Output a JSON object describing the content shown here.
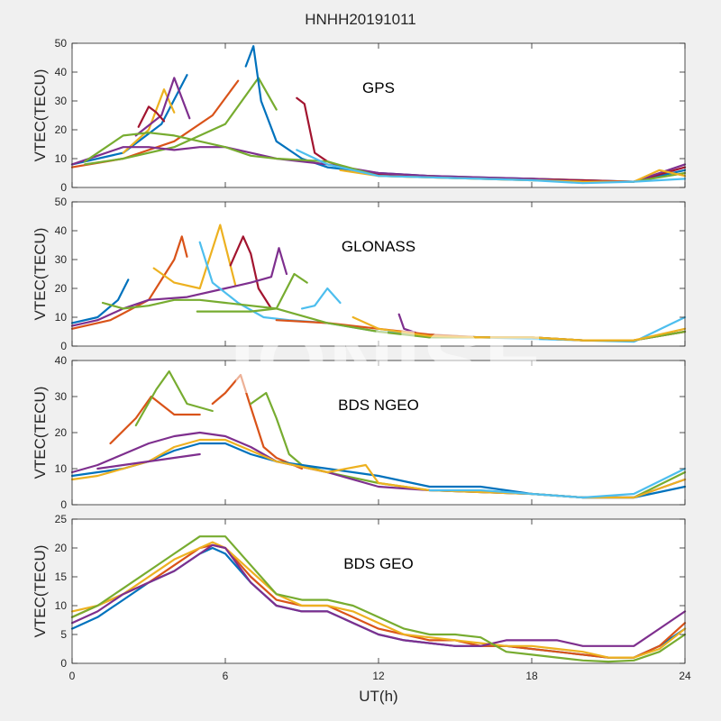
{
  "figure": {
    "title": "HNHH20191011",
    "watermark": "IONISE"
  },
  "colors": [
    "#0072BD",
    "#D95319",
    "#EDB120",
    "#7E2F8E",
    "#77AC30",
    "#4DBEEE",
    "#A2142F"
  ],
  "chart_data": [
    {
      "type": "line",
      "title": "GPS",
      "xlabel": "",
      "ylabel": "VTEC(TECU)",
      "xlim": [
        0,
        24
      ],
      "ylim": [
        0,
        50
      ],
      "xticks": [
        0,
        6,
        12,
        18,
        24
      ],
      "yticks": [
        0,
        10,
        20,
        30,
        40,
        50
      ],
      "show_xtick_labels": false,
      "series": [
        {
          "color": "#0072BD",
          "x": [
            0,
            2,
            3.5,
            4.5
          ],
          "y": [
            8,
            12,
            22,
            39
          ]
        },
        {
          "color": "#D95319",
          "x": [
            0,
            2,
            4,
            5.5,
            6.5
          ],
          "y": [
            7,
            10,
            16,
            25,
            37
          ]
        },
        {
          "color": "#EDB120",
          "x": [
            2,
            3,
            3.6,
            4
          ],
          "y": [
            12,
            20,
            34,
            26
          ]
        },
        {
          "color": "#7E2F8E",
          "x": [
            2.5,
            3.5,
            4,
            4.6
          ],
          "y": [
            18,
            25,
            38,
            24
          ]
        },
        {
          "color": "#77AC30",
          "x": [
            0.5,
            2,
            4,
            6,
            7.3,
            8
          ],
          "y": [
            8,
            10,
            14,
            22,
            38,
            27
          ]
        },
        {
          "color": "#A2142F",
          "x": [
            2.6,
            3,
            3.3,
            3.6
          ],
          "y": [
            21,
            28,
            26,
            23
          ]
        },
        {
          "color": "#0072BD",
          "x": [
            6.8,
            7.1,
            7.4,
            8,
            9,
            10,
            12,
            14,
            16,
            18,
            20,
            22,
            24
          ],
          "y": [
            42,
            49,
            30,
            16,
            10,
            7,
            5,
            4,
            3.5,
            3,
            2.5,
            2,
            6
          ]
        },
        {
          "color": "#A2142F",
          "x": [
            8.8,
            9.1,
            9.5,
            10,
            11,
            12,
            14,
            16,
            18,
            20,
            22,
            24
          ],
          "y": [
            31,
            29,
            12,
            9,
            6,
            4.5,
            4,
            3,
            3,
            2.5,
            2,
            7
          ]
        },
        {
          "color": "#7E2F8E",
          "x": [
            0,
            1,
            2,
            3,
            4,
            5,
            6,
            7,
            8,
            10,
            12,
            14,
            16,
            18,
            20,
            22,
            23,
            24
          ],
          "y": [
            8,
            11,
            14,
            14,
            13,
            14,
            14,
            12,
            10,
            8,
            5,
            4,
            3.5,
            3,
            2,
            2,
            5,
            8
          ]
        },
        {
          "color": "#77AC30",
          "x": [
            0.5,
            2,
            3,
            4,
            5,
            6,
            7,
            8,
            10,
            12,
            14,
            16,
            18,
            20,
            22,
            24
          ],
          "y": [
            9,
            18,
            19,
            18,
            16,
            14,
            11,
            10,
            9,
            4,
            3.5,
            3,
            2.5,
            2,
            2,
            5
          ]
        },
        {
          "color": "#EDB120",
          "x": [
            10.5,
            12,
            14,
            16,
            18,
            20,
            22,
            23,
            24
          ],
          "y": [
            6,
            4,
            3.5,
            3,
            2.5,
            2,
            2,
            6,
            4
          ]
        },
        {
          "color": "#4DBEEE",
          "x": [
            8.8,
            10,
            12,
            14,
            16,
            18,
            20,
            22,
            24
          ],
          "y": [
            13,
            8,
            4,
            3.5,
            3,
            2.5,
            1.5,
            2,
            3
          ]
        }
      ]
    },
    {
      "type": "line",
      "title": "GLONASS",
      "xlabel": "",
      "ylabel": "VTEC(TECU)",
      "xlim": [
        0,
        24
      ],
      "ylim": [
        0,
        50
      ],
      "xticks": [
        0,
        6,
        12,
        18,
        24
      ],
      "yticks": [
        0,
        10,
        20,
        30,
        40,
        50
      ],
      "show_xtick_labels": false,
      "series": [
        {
          "color": "#0072BD",
          "x": [
            0,
            1,
            1.8,
            2.2
          ],
          "y": [
            8,
            10,
            16,
            23
          ]
        },
        {
          "color": "#D95319",
          "x": [
            0,
            1.5,
            3,
            4,
            4.3,
            4.5
          ],
          "y": [
            6,
            9,
            16,
            30,
            38,
            31
          ]
        },
        {
          "color": "#EDB120",
          "x": [
            3.2,
            4,
            5,
            5.8,
            6.4
          ],
          "y": [
            27,
            22,
            20,
            42,
            21
          ]
        },
        {
          "color": "#A2142F",
          "x": [
            6.2,
            6.7,
            7,
            7.3,
            7.8
          ],
          "y": [
            28,
            38,
            32,
            20,
            13
          ]
        },
        {
          "color": "#7E2F8E",
          "x": [
            0,
            1,
            2,
            3,
            4.5,
            6,
            7,
            7.8,
            8.1,
            8.4
          ],
          "y": [
            7,
            9,
            13,
            16,
            17,
            20,
            22,
            24,
            34,
            25
          ]
        },
        {
          "color": "#4DBEEE",
          "x": [
            5,
            5.5,
            6.5,
            7.5,
            8.5,
            10,
            12,
            14,
            16,
            18,
            20,
            22,
            24
          ],
          "y": [
            36,
            22,
            15,
            10,
            9,
            8,
            5,
            4,
            3,
            2.5,
            2,
            1.5,
            10
          ]
        },
        {
          "color": "#77AC30",
          "x": [
            4.9,
            6,
            7,
            8,
            8.7,
            9.2
          ],
          "y": [
            12,
            12,
            12,
            13,
            25,
            22
          ]
        },
        {
          "color": "#4DBEEE",
          "x": [
            9,
            9.5,
            10,
            10.5
          ],
          "y": [
            13,
            14,
            20,
            15
          ]
        },
        {
          "color": "#7E2F8E",
          "x": [
            12.8,
            13,
            14,
            16,
            18,
            20,
            22,
            24
          ],
          "y": [
            11,
            6,
            3,
            3,
            3,
            2,
            2,
            5
          ]
        },
        {
          "color": "#D95319",
          "x": [
            8,
            10,
            12,
            14,
            16,
            18,
            20,
            22,
            24
          ],
          "y": [
            9,
            8,
            6,
            4,
            3,
            3,
            2,
            2,
            5
          ]
        },
        {
          "color": "#77AC30",
          "x": [
            1.2,
            2,
            3,
            4,
            5,
            6,
            8,
            10,
            12,
            14,
            16,
            18,
            20,
            22,
            24
          ],
          "y": [
            15,
            13,
            14,
            16,
            16,
            15,
            13,
            8,
            5,
            3,
            3,
            3,
            2,
            2,
            5
          ]
        },
        {
          "color": "#EDB120",
          "x": [
            11,
            12,
            14,
            16,
            18,
            20,
            22,
            24
          ],
          "y": [
            10,
            6,
            3.5,
            3,
            3,
            2,
            2,
            6
          ]
        }
      ]
    },
    {
      "type": "line",
      "title": "BDS NGEO",
      "xlabel": "",
      "ylabel": "VTEC(TECU)",
      "xlim": [
        0,
        24
      ],
      "ylim": [
        0,
        40
      ],
      "xticks": [
        0,
        6,
        12,
        18,
        24
      ],
      "yticks": [
        0,
        10,
        20,
        30,
        40
      ],
      "show_xtick_labels": false,
      "series": [
        {
          "color": "#D95319",
          "x": [
            1.5,
            2.5,
            3.1,
            4,
            5
          ],
          "y": [
            17,
            24,
            30,
            25,
            25
          ]
        },
        {
          "color": "#77AC30",
          "x": [
            2.5,
            3.3,
            3.8,
            4.5,
            5.5
          ],
          "y": [
            22,
            32,
            37,
            28,
            26
          ]
        },
        {
          "color": "#D95319",
          "x": [
            5.5,
            6,
            6.6,
            7,
            7.5,
            8,
            9
          ],
          "y": [
            28,
            31,
            36,
            27,
            16,
            13,
            10
          ]
        },
        {
          "color": "#77AC30",
          "x": [
            7,
            7.6,
            8,
            8.5,
            9,
            10,
            12,
            14,
            16,
            18,
            20,
            22,
            24
          ],
          "y": [
            28,
            31,
            24,
            14,
            11,
            9,
            6,
            4,
            3.5,
            3,
            2,
            2,
            9
          ]
        },
        {
          "color": "#7E2F8E",
          "x": [
            0,
            1,
            2,
            3,
            4,
            5,
            6,
            7,
            8,
            10,
            12,
            14,
            16,
            18,
            20,
            22,
            24
          ],
          "y": [
            9,
            11,
            14,
            17,
            19,
            20,
            19,
            16,
            12,
            9,
            5,
            4,
            3.5,
            3,
            2,
            2,
            7
          ]
        },
        {
          "color": "#0072BD",
          "x": [
            0,
            1,
            2,
            3,
            4,
            5,
            6,
            7,
            8,
            10,
            12,
            14,
            16,
            18,
            20,
            22,
            24
          ],
          "y": [
            8,
            9,
            10,
            12,
            15,
            17,
            17,
            14,
            12,
            10,
            8,
            5,
            5,
            3,
            2,
            2,
            5
          ]
        },
        {
          "color": "#EDB120",
          "x": [
            0,
            1,
            2,
            3,
            4,
            5,
            6,
            7,
            8,
            10,
            11.5,
            12,
            14,
            16,
            18,
            20,
            22,
            24
          ],
          "y": [
            7,
            8,
            10,
            12,
            16,
            18,
            18,
            15,
            12,
            9,
            11,
            6,
            4,
            3.5,
            3,
            2,
            2,
            7
          ]
        },
        {
          "color": "#7E2F8E",
          "x": [
            1,
            2,
            3,
            4,
            5
          ],
          "y": [
            10,
            11,
            12,
            13,
            14
          ]
        },
        {
          "color": "#4DBEEE",
          "x": [
            14,
            16,
            18,
            20,
            22,
            24
          ],
          "y": [
            4,
            4,
            3,
            2,
            3,
            10
          ]
        }
      ]
    },
    {
      "type": "line",
      "title": "BDS GEO",
      "xlabel": "UT(h)",
      "ylabel": "VTEC(TECU)",
      "xlim": [
        0,
        24
      ],
      "ylim": [
        0,
        25
      ],
      "xticks": [
        0,
        6,
        12,
        18,
        24
      ],
      "yticks": [
        0,
        5,
        10,
        15,
        20,
        25
      ],
      "show_xtick_labels": true,
      "series": [
        {
          "color": "#0072BD",
          "x": [
            0,
            1,
            2,
            3,
            4,
            5,
            5.5,
            6,
            7,
            8,
            9,
            10,
            11,
            12,
            13,
            14,
            15,
            16,
            17,
            18,
            19,
            20,
            21,
            22,
            23,
            24
          ],
          "y": [
            6,
            8,
            11,
            14,
            16,
            19,
            20,
            19,
            14,
            10,
            9,
            9,
            7,
            5,
            4,
            3.5,
            3,
            3,
            3,
            2.5,
            2,
            1.5,
            1,
            1,
            3,
            6
          ]
        },
        {
          "color": "#D95319",
          "x": [
            0,
            1,
            2,
            3,
            4,
            5,
            5.5,
            6,
            7,
            8,
            9,
            10,
            11,
            12,
            13,
            14,
            15,
            16,
            17,
            18,
            19,
            20,
            21,
            22,
            23,
            24
          ],
          "y": [
            8,
            10,
            12,
            14,
            17,
            20,
            20.5,
            20,
            15,
            11,
            10,
            10,
            8,
            6,
            5,
            4,
            4,
            3,
            3,
            2.5,
            2,
            1.5,
            1,
            1,
            3,
            7
          ]
        },
        {
          "color": "#EDB120",
          "x": [
            0,
            1,
            2,
            3,
            4,
            5,
            5.5,
            6,
            7,
            8,
            9,
            10,
            11,
            12,
            13,
            14,
            15,
            16,
            17,
            18,
            19,
            20,
            21,
            22,
            23,
            24
          ],
          "y": [
            9,
            10,
            12,
            15,
            18,
            20,
            21,
            20,
            16,
            12,
            10,
            10,
            9,
            7,
            5,
            4.5,
            4,
            3.5,
            3,
            3,
            2.5,
            2,
            1,
            1,
            2.5,
            6
          ]
        },
        {
          "color": "#7E2F8E",
          "x": [
            0,
            1,
            2,
            3,
            4,
            5,
            5.5,
            6,
            7,
            8,
            9,
            10,
            11,
            12,
            13,
            14,
            15,
            16,
            17,
            18,
            19,
            20,
            21,
            22,
            23,
            24
          ],
          "y": [
            7,
            9,
            12,
            14,
            16,
            19,
            20.5,
            20,
            14,
            10,
            9,
            9,
            7,
            5,
            4,
            3.5,
            3,
            3,
            4,
            4,
            4,
            3,
            3,
            3,
            6,
            9
          ]
        },
        {
          "color": "#77AC30",
          "x": [
            0,
            1,
            2,
            3,
            4,
            5,
            6,
            7,
            8,
            9,
            10,
            11,
            12,
            13,
            14,
            15,
            16,
            17,
            18,
            19,
            20,
            21,
            22,
            23,
            24
          ],
          "y": [
            8,
            10,
            13,
            16,
            19,
            22,
            22,
            17,
            12,
            11,
            11,
            10,
            8,
            6,
            5,
            5,
            4.5,
            2,
            1.5,
            1,
            0.5,
            0.3,
            0.5,
            2,
            5
          ]
        }
      ]
    }
  ]
}
